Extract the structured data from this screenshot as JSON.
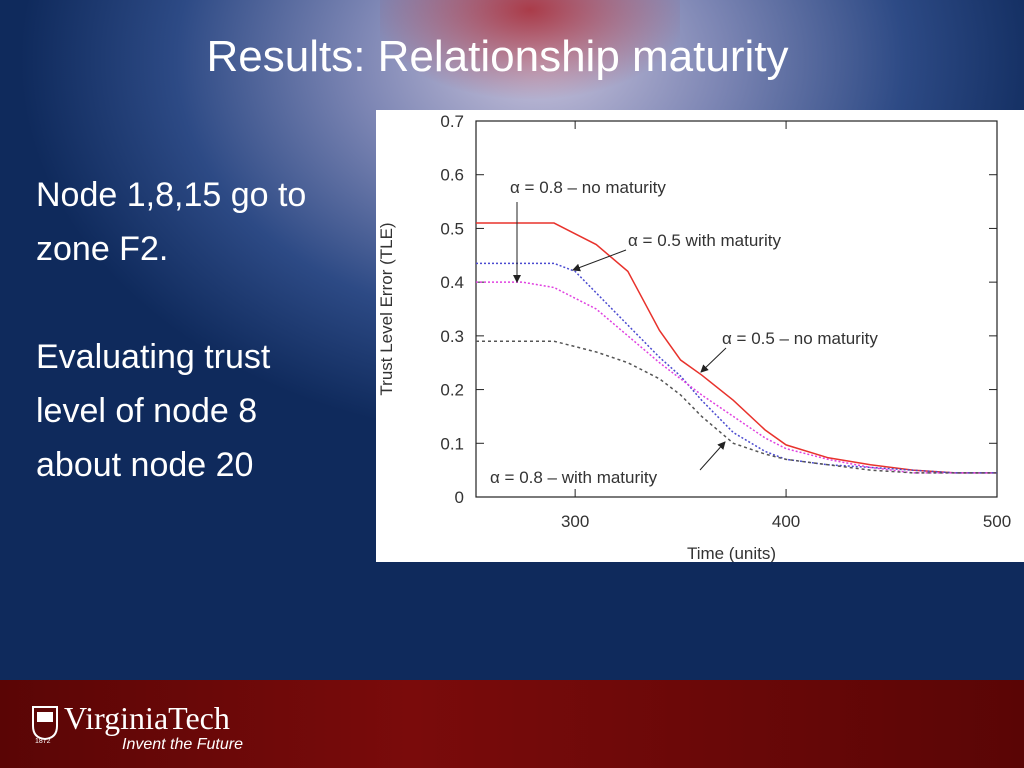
{
  "slide": {
    "title": "Results: Relationship maturity",
    "body": [
      [
        "Node 1,8,15 go to",
        "zone F2."
      ],
      [
        "Evaluating trust",
        "level of node 8",
        "about node 20"
      ]
    ],
    "logo": {
      "name": "VirginiaTech",
      "tagline": "Invent the Future",
      "year": "1872"
    }
  },
  "chart_data": {
    "type": "line",
    "x_label": "Time (units)",
    "y_label": "Trust Level Error (TLE)",
    "x": [
      253,
      275,
      290,
      300,
      310,
      325,
      340,
      350,
      360,
      375,
      390,
      400,
      420,
      440,
      460,
      480,
      500
    ],
    "series": [
      {
        "name": "α = 0.5 – no maturity",
        "color": "#e8322c",
        "values": [
          0.51,
          0.51,
          0.51,
          0.49,
          0.47,
          0.42,
          0.31,
          0.255,
          0.227,
          0.18,
          0.125,
          0.097,
          0.073,
          0.06,
          0.05,
          0.045,
          0.045
        ]
      },
      {
        "name": "α = 0.5 with maturity",
        "color": "#4a4ad0",
        "values": [
          0.435,
          0.435,
          0.435,
          0.42,
          0.38,
          0.32,
          0.26,
          0.225,
          0.18,
          0.12,
          0.085,
          0.07,
          0.06,
          0.055,
          0.05,
          0.045,
          0.045
        ]
      },
      {
        "name": "α = 0.8 – no maturity",
        "color": "#e040e0",
        "values": [
          0.4,
          0.4,
          0.39,
          0.37,
          0.35,
          0.3,
          0.25,
          0.22,
          0.19,
          0.15,
          0.11,
          0.09,
          0.07,
          0.055,
          0.045,
          0.045,
          0.045
        ]
      },
      {
        "name": "α = 0.8 – with maturity",
        "color": "#555555",
        "values": [
          0.29,
          0.29,
          0.29,
          0.28,
          0.27,
          0.25,
          0.22,
          0.19,
          0.15,
          0.1,
          0.08,
          0.07,
          0.06,
          0.05,
          0.045,
          0.045,
          0.045
        ]
      }
    ],
    "xlim": [
      253,
      500
    ],
    "xticks": [
      300,
      400,
      500
    ],
    "ylim": [
      0,
      0.7
    ],
    "yticks": [
      0,
      0.1,
      0.2,
      0.3,
      0.4,
      0.5,
      0.6,
      0.7
    ]
  }
}
